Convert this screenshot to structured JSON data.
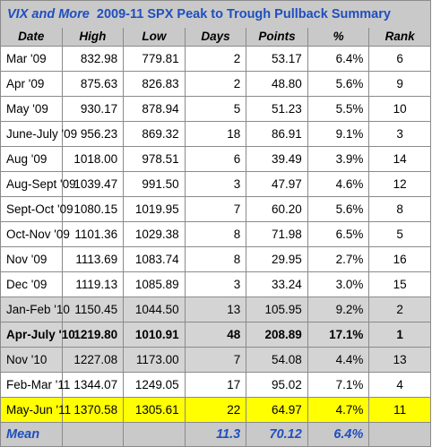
{
  "title": {
    "part1": "VIX and More",
    "part2": "2009-11 SPX Peak to Trough Pullback Summary"
  },
  "headers": [
    "Date",
    "High",
    "Low",
    "Days",
    "Points",
    "%",
    "Rank"
  ],
  "rows": [
    {
      "group": "white",
      "date": "Mar '09",
      "high": "832.98",
      "low": "779.81",
      "days": "2",
      "points": "53.17",
      "pct": "6.4%",
      "rank": "6"
    },
    {
      "group": "white",
      "date": "Apr '09",
      "high": "875.63",
      "low": "826.83",
      "days": "2",
      "points": "48.80",
      "pct": "5.6%",
      "rank": "9"
    },
    {
      "group": "white",
      "date": "May '09",
      "high": "930.17",
      "low": "878.94",
      "days": "5",
      "points": "51.23",
      "pct": "5.5%",
      "rank": "10"
    },
    {
      "group": "white",
      "date": "June-July '09",
      "high": "956.23",
      "low": "869.32",
      "days": "18",
      "points": "86.91",
      "pct": "9.1%",
      "rank": "3"
    },
    {
      "group": "white",
      "date": "Aug '09",
      "high": "1018.00",
      "low": "978.51",
      "days": "6",
      "points": "39.49",
      "pct": "3.9%",
      "rank": "14"
    },
    {
      "group": "white",
      "date": "Aug-Sept '09",
      "high": "1039.47",
      "low": "991.50",
      "days": "3",
      "points": "47.97",
      "pct": "4.6%",
      "rank": "12"
    },
    {
      "group": "white",
      "date": "Sept-Oct '09",
      "high": "1080.15",
      "low": "1019.95",
      "days": "7",
      "points": "60.20",
      "pct": "5.6%",
      "rank": "8"
    },
    {
      "group": "white",
      "date": "Oct-Nov '09",
      "high": "1101.36",
      "low": "1029.38",
      "days": "8",
      "points": "71.98",
      "pct": "6.5%",
      "rank": "5"
    },
    {
      "group": "white",
      "date": "Nov '09",
      "high": "1113.69",
      "low": "1083.74",
      "days": "8",
      "points": "29.95",
      "pct": "2.7%",
      "rank": "16"
    },
    {
      "group": "white",
      "date": "Dec '09",
      "high": "1119.13",
      "low": "1085.89",
      "days": "3",
      "points": "33.24",
      "pct": "3.0%",
      "rank": "15"
    },
    {
      "group": "gray",
      "date": "Jan-Feb '10",
      "high": "1150.45",
      "low": "1044.50",
      "days": "13",
      "points": "105.95",
      "pct": "9.2%",
      "rank": "2"
    },
    {
      "group": "gray bold",
      "date": "Apr-July '10",
      "high": "1219.80",
      "low": "1010.91",
      "days": "48",
      "points": "208.89",
      "pct": "17.1%",
      "rank": "1"
    },
    {
      "group": "gray",
      "date": "Nov '10",
      "high": "1227.08",
      "low": "1173.00",
      "days": "7",
      "points": "54.08",
      "pct": "4.4%",
      "rank": "13"
    },
    {
      "group": "white",
      "date": "Feb-Mar '11",
      "high": "1344.07",
      "low": "1249.05",
      "days": "17",
      "points": "95.02",
      "pct": "7.1%",
      "rank": "4"
    },
    {
      "group": "yellow",
      "date": "May-Jun '11",
      "high": "1370.58",
      "low": "1305.61",
      "days": "22",
      "points": "64.97",
      "pct": "4.7%",
      "rank": "11"
    }
  ],
  "mean": {
    "label": "Mean",
    "days": "11.3",
    "points": "70.12",
    "pct": "6.4%"
  }
}
